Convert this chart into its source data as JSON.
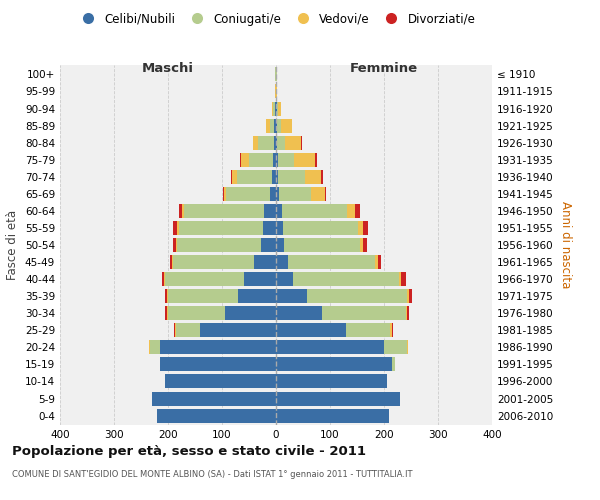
{
  "age_groups": [
    "0-4",
    "5-9",
    "10-14",
    "15-19",
    "20-24",
    "25-29",
    "30-34",
    "35-39",
    "40-44",
    "45-49",
    "50-54",
    "55-59",
    "60-64",
    "65-69",
    "70-74",
    "75-79",
    "80-84",
    "85-89",
    "90-94",
    "95-99",
    "100+"
  ],
  "birth_years": [
    "2006-2010",
    "2001-2005",
    "1996-2000",
    "1991-1995",
    "1986-1990",
    "1981-1985",
    "1976-1980",
    "1971-1975",
    "1966-1970",
    "1961-1965",
    "1956-1960",
    "1951-1955",
    "1946-1950",
    "1941-1945",
    "1936-1940",
    "1931-1935",
    "1926-1930",
    "1921-1925",
    "1916-1920",
    "1911-1915",
    "≤ 1910"
  ],
  "males": {
    "celibi": [
      220,
      230,
      205,
      215,
      215,
      140,
      95,
      70,
      60,
      40,
      28,
      25,
      22,
      12,
      8,
      5,
      3,
      3,
      1,
      0,
      0
    ],
    "coniugati": [
      0,
      0,
      0,
      0,
      18,
      45,
      105,
      130,
      145,
      150,
      155,
      155,
      148,
      80,
      65,
      45,
      30,
      8,
      4,
      0,
      1
    ],
    "vedovi": [
      0,
      0,
      0,
      0,
      2,
      2,
      2,
      2,
      2,
      2,
      3,
      3,
      5,
      5,
      8,
      15,
      10,
      8,
      3,
      1,
      0
    ],
    "divorziati": [
      0,
      0,
      0,
      0,
      0,
      2,
      3,
      3,
      5,
      5,
      5,
      8,
      5,
      2,
      2,
      2,
      0,
      0,
      0,
      0,
      0
    ]
  },
  "females": {
    "nubili": [
      210,
      230,
      205,
      215,
      200,
      130,
      85,
      58,
      32,
      22,
      14,
      13,
      12,
      5,
      4,
      3,
      2,
      2,
      1,
      0,
      0
    ],
    "coniugate": [
      0,
      0,
      0,
      5,
      42,
      82,
      155,
      185,
      195,
      162,
      142,
      138,
      120,
      60,
      50,
      30,
      15,
      8,
      3,
      0,
      1
    ],
    "vedove": [
      0,
      0,
      0,
      0,
      2,
      3,
      3,
      3,
      5,
      5,
      5,
      10,
      15,
      25,
      30,
      40,
      30,
      20,
      5,
      1,
      0
    ],
    "divorziate": [
      0,
      0,
      0,
      0,
      0,
      2,
      3,
      5,
      8,
      5,
      8,
      10,
      8,
      3,
      3,
      2,
      2,
      0,
      0,
      0,
      0
    ]
  },
  "colors": {
    "celibi": "#3a6ea5",
    "coniugati": "#b5cc8e",
    "vedovi": "#f0c050",
    "divorziati": "#cc2222"
  },
  "xlim": [
    -400,
    400
  ],
  "xticks": [
    -400,
    -300,
    -200,
    -100,
    0,
    100,
    200,
    300,
    400
  ],
  "xticklabels": [
    "400",
    "300",
    "200",
    "100",
    "0",
    "100",
    "200",
    "300",
    "400"
  ],
  "title": "Popolazione per età, sesso e stato civile - 2011",
  "subtitle": "COMUNE DI SANT'EGIDIO DEL MONTE ALBINO (SA) - Dati ISTAT 1° gennaio 2011 - TUTTITALIA.IT",
  "ylabel_left": "Fasce di età",
  "ylabel_right": "Anni di nascita",
  "legend_labels": [
    "Celibi/Nubili",
    "Coniugati/e",
    "Vedovi/e",
    "Divorziati/e"
  ],
  "maschi_label": "Maschi",
  "femmine_label": "Femmine",
  "plot_bg": "#f0f0f0",
  "fig_bg": "#ffffff",
  "grid_color": "#cccccc"
}
